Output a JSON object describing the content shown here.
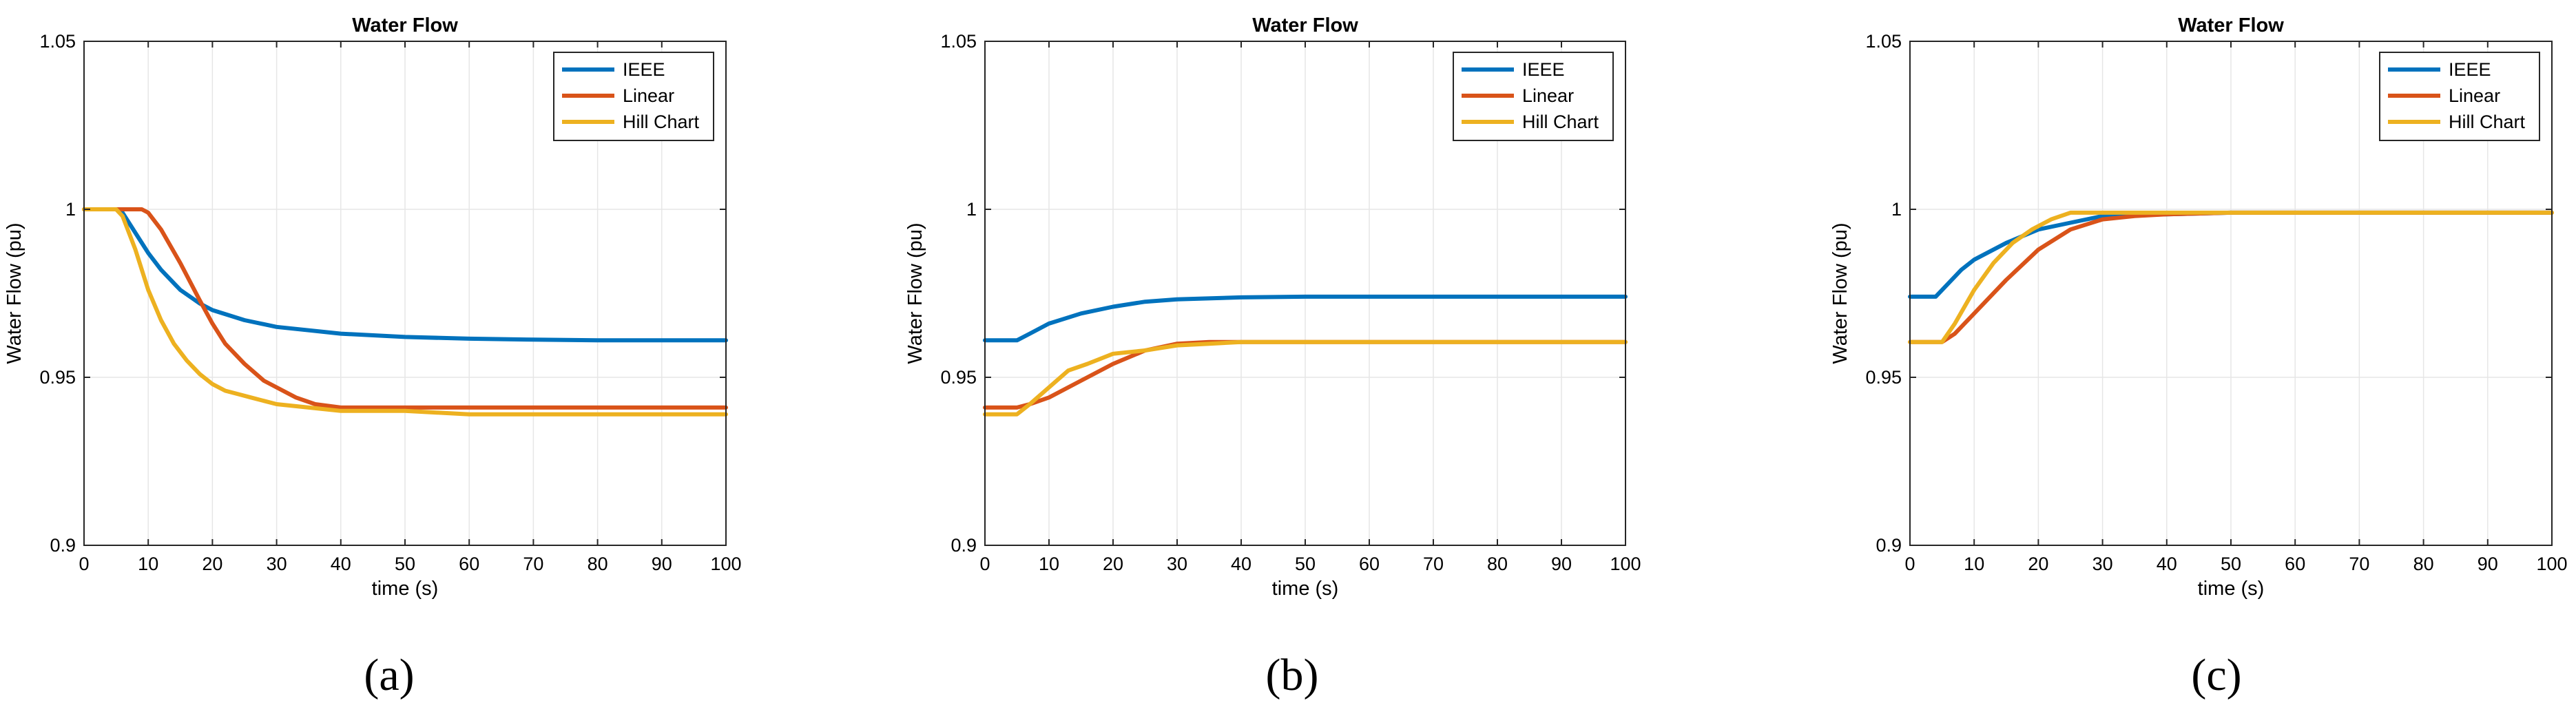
{
  "chart_data": [
    {
      "type": "line",
      "title": "Water Flow",
      "xlabel": "time (s)",
      "ylabel": "Water Flow (pu)",
      "xlim": [
        0,
        100
      ],
      "ylim": [
        0.9,
        1.05
      ],
      "xticks": [
        "0",
        "10",
        "20",
        "30",
        "40",
        "50",
        "60",
        "70",
        "80",
        "90",
        "100"
      ],
      "yticks": [
        "0.9",
        "0.95",
        "1",
        "1.05"
      ],
      "grid": true,
      "legend_position": "top-right",
      "caption": "(a)",
      "series": [
        {
          "name": "IEEE",
          "color": "#0072BD",
          "x": [
            0,
            5,
            6,
            8,
            10,
            12,
            15,
            18,
            20,
            25,
            30,
            35,
            40,
            50,
            60,
            70,
            80,
            90,
            100
          ],
          "y": [
            1.0,
            1.0,
            0.999,
            0.993,
            0.987,
            0.982,
            0.976,
            0.972,
            0.97,
            0.967,
            0.965,
            0.964,
            0.963,
            0.962,
            0.9615,
            0.9612,
            0.961,
            0.961,
            0.961
          ]
        },
        {
          "name": "Linear",
          "color": "#D95319",
          "x": [
            0,
            8,
            9,
            10,
            12,
            15,
            18,
            20,
            22,
            25,
            28,
            30,
            33,
            36,
            40,
            45,
            50,
            60,
            70,
            80,
            90,
            100
          ],
          "y": [
            1.0,
            1.0,
            1.0,
            0.999,
            0.994,
            0.984,
            0.973,
            0.966,
            0.96,
            0.954,
            0.949,
            0.947,
            0.944,
            0.942,
            0.941,
            0.941,
            0.941,
            0.941,
            0.941,
            0.941,
            0.941,
            0.941
          ]
        },
        {
          "name": "Hill Chart",
          "color": "#EDB120",
          "x": [
            0,
            5,
            6,
            8,
            10,
            12,
            14,
            16,
            18,
            20,
            22,
            24,
            26,
            28,
            30,
            35,
            40,
            50,
            60,
            70,
            80,
            90,
            100
          ],
          "y": [
            1.0,
            1.0,
            0.998,
            0.988,
            0.976,
            0.967,
            0.96,
            0.955,
            0.951,
            0.948,
            0.946,
            0.945,
            0.944,
            0.943,
            0.942,
            0.941,
            0.94,
            0.94,
            0.939,
            0.939,
            0.939,
            0.939,
            0.939
          ]
        }
      ]
    },
    {
      "type": "line",
      "title": "Water Flow",
      "xlabel": "time (s)",
      "ylabel": "Water Flow (pu)",
      "xlim": [
        0,
        100
      ],
      "ylim": [
        0.9,
        1.05
      ],
      "xticks": [
        "0",
        "10",
        "20",
        "30",
        "40",
        "50",
        "60",
        "70",
        "80",
        "90",
        "100"
      ],
      "yticks": [
        "0.9",
        "0.95",
        "1",
        "1.05"
      ],
      "grid": true,
      "legend_position": "top-right",
      "caption": "(b)",
      "series": [
        {
          "name": "IEEE",
          "color": "#0072BD",
          "x": [
            0,
            5,
            7,
            10,
            15,
            20,
            25,
            30,
            40,
            50,
            60,
            70,
            80,
            90,
            100
          ],
          "y": [
            0.961,
            0.961,
            0.963,
            0.966,
            0.969,
            0.971,
            0.9725,
            0.9732,
            0.9738,
            0.974,
            0.974,
            0.974,
            0.974,
            0.974,
            0.974
          ]
        },
        {
          "name": "Linear",
          "color": "#D95319",
          "x": [
            0,
            5,
            7,
            10,
            15,
            20,
            25,
            30,
            35,
            40,
            50,
            60,
            70,
            80,
            90,
            100
          ],
          "y": [
            0.941,
            0.941,
            0.942,
            0.944,
            0.949,
            0.954,
            0.958,
            0.96,
            0.9605,
            0.9605,
            0.9605,
            0.9605,
            0.9605,
            0.9605,
            0.9605,
            0.9605
          ]
        },
        {
          "name": "Hill Chart",
          "color": "#EDB120",
          "x": [
            0,
            5,
            7,
            10,
            13,
            16,
            20,
            25,
            30,
            35,
            40,
            50,
            60,
            70,
            80,
            90,
            100
          ],
          "y": [
            0.939,
            0.939,
            0.942,
            0.947,
            0.952,
            0.954,
            0.957,
            0.958,
            0.9595,
            0.96,
            0.9605,
            0.9605,
            0.9605,
            0.9605,
            0.9605,
            0.9605,
            0.9605
          ]
        }
      ]
    },
    {
      "type": "line",
      "title": "Water Flow",
      "xlabel": "time (s)",
      "ylabel": "Water Flow (pu)",
      "xlim": [
        0,
        100
      ],
      "ylim": [
        0.9,
        1.05
      ],
      "xticks": [
        "0",
        "10",
        "20",
        "30",
        "40",
        "50",
        "60",
        "70",
        "80",
        "90",
        "100"
      ],
      "yticks": [
        "0.9",
        "0.95",
        "1",
        "1.05"
      ],
      "grid": true,
      "legend_position": "top-right",
      "caption": "(c)",
      "series": [
        {
          "name": "IEEE",
          "color": "#0072BD",
          "x": [
            0,
            4,
            6,
            8,
            10,
            15,
            20,
            25,
            30,
            40,
            50,
            60,
            70,
            80,
            90,
            100
          ],
          "y": [
            0.974,
            0.974,
            0.978,
            0.982,
            0.985,
            0.99,
            0.994,
            0.996,
            0.998,
            0.9985,
            0.999,
            0.999,
            0.999,
            0.999,
            0.999,
            0.999
          ]
        },
        {
          "name": "Linear",
          "color": "#D95319",
          "x": [
            0,
            5,
            7,
            10,
            15,
            20,
            25,
            30,
            35,
            40,
            50,
            60,
            70,
            80,
            90,
            100
          ],
          "y": [
            0.9605,
            0.9605,
            0.963,
            0.969,
            0.979,
            0.988,
            0.994,
            0.997,
            0.998,
            0.9985,
            0.999,
            0.999,
            0.999,
            0.999,
            0.999,
            0.999
          ]
        },
        {
          "name": "Hill Chart",
          "color": "#EDB120",
          "x": [
            0,
            5,
            7,
            10,
            13,
            16,
            19,
            22,
            25,
            28,
            30,
            40,
            50,
            60,
            70,
            80,
            90,
            100
          ],
          "y": [
            0.9605,
            0.9605,
            0.966,
            0.976,
            0.984,
            0.99,
            0.994,
            0.997,
            0.999,
            0.999,
            0.999,
            0.999,
            0.999,
            0.999,
            0.999,
            0.999,
            0.999,
            0.999
          ]
        }
      ]
    }
  ]
}
